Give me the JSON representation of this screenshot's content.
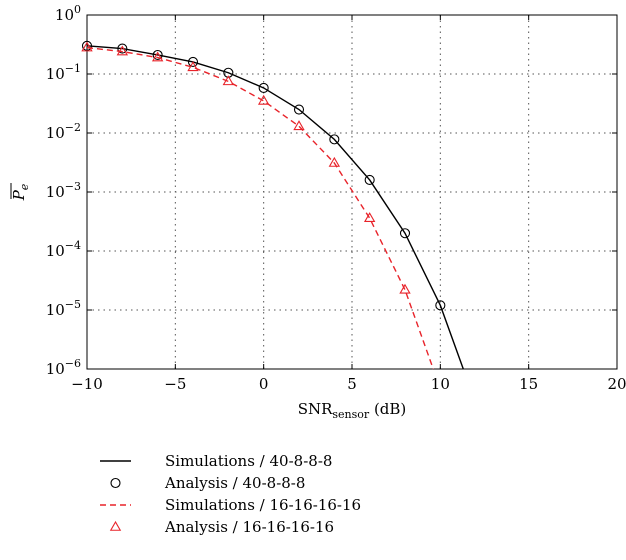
{
  "chart_data": {
    "type": "line",
    "xlabel": "SNR",
    "xlabel_subscript": "sensor",
    "xlabel_unit": "(dB)",
    "ylabel": "P",
    "ylabel_subscript": "e",
    "xlim": [
      -10,
      20
    ],
    "ylim": [
      1e-06,
      1
    ],
    "yscale": "log",
    "grid": true,
    "legend_position": "below",
    "x_ticks": [
      -10,
      -5,
      0,
      5,
      10,
      15,
      20
    ],
    "x_tick_labels": [
      "−10",
      "−5",
      "0",
      "5",
      "10",
      "15",
      "20"
    ],
    "y_ticks": [
      {
        "value": 1e-06,
        "base": "10",
        "exp": "−6"
      },
      {
        "value": 1e-05,
        "base": "10",
        "exp": "−5"
      },
      {
        "value": 0.0001,
        "base": "10",
        "exp": "−4"
      },
      {
        "value": 0.001,
        "base": "10",
        "exp": "−3"
      },
      {
        "value": 0.01,
        "base": "10",
        "exp": "−2"
      },
      {
        "value": 0.1,
        "base": "10",
        "exp": "−1"
      },
      {
        "value": 1,
        "base": "10",
        "exp": "0"
      }
    ],
    "series": [
      {
        "name": "Simulations / 40-8-8-8",
        "style": "line",
        "color": "#000000",
        "x": [
          -10,
          -8,
          -6,
          -4,
          -2,
          0,
          2,
          4,
          6,
          8,
          10,
          11.3
        ],
        "y": [
          0.3,
          0.27,
          0.21,
          0.16,
          0.105,
          0.058,
          0.025,
          0.0078,
          0.0016,
          0.0002,
          1.2e-05,
          1e-06
        ]
      },
      {
        "name": "Analysis / 40-8-8-8",
        "style": "marker-circle",
        "color": "#000000",
        "x": [
          -10,
          -8,
          -6,
          -4,
          -2,
          0,
          2,
          4,
          6,
          8,
          10
        ],
        "y": [
          0.3,
          0.27,
          0.21,
          0.16,
          0.105,
          0.058,
          0.025,
          0.0078,
          0.0016,
          0.0002,
          1.2e-05
        ]
      },
      {
        "name": "Simulations / 16-16-16-16",
        "style": "dashed",
        "color": "#e8232a",
        "x": [
          -10,
          -8,
          -6,
          -4,
          -2,
          0,
          2,
          4,
          6,
          8,
          9.6
        ],
        "y": [
          0.28,
          0.24,
          0.19,
          0.13,
          0.075,
          0.035,
          0.013,
          0.0031,
          0.00036,
          2.2e-05,
          1e-06
        ]
      },
      {
        "name": "Analysis / 16-16-16-16",
        "style": "marker-triangle",
        "color": "#e8232a",
        "x": [
          -10,
          -8,
          -6,
          -4,
          -2,
          0,
          2,
          4,
          6,
          8
        ],
        "y": [
          0.28,
          0.24,
          0.19,
          0.13,
          0.075,
          0.035,
          0.013,
          0.0031,
          0.00036,
          2.2e-05
        ]
      }
    ]
  }
}
